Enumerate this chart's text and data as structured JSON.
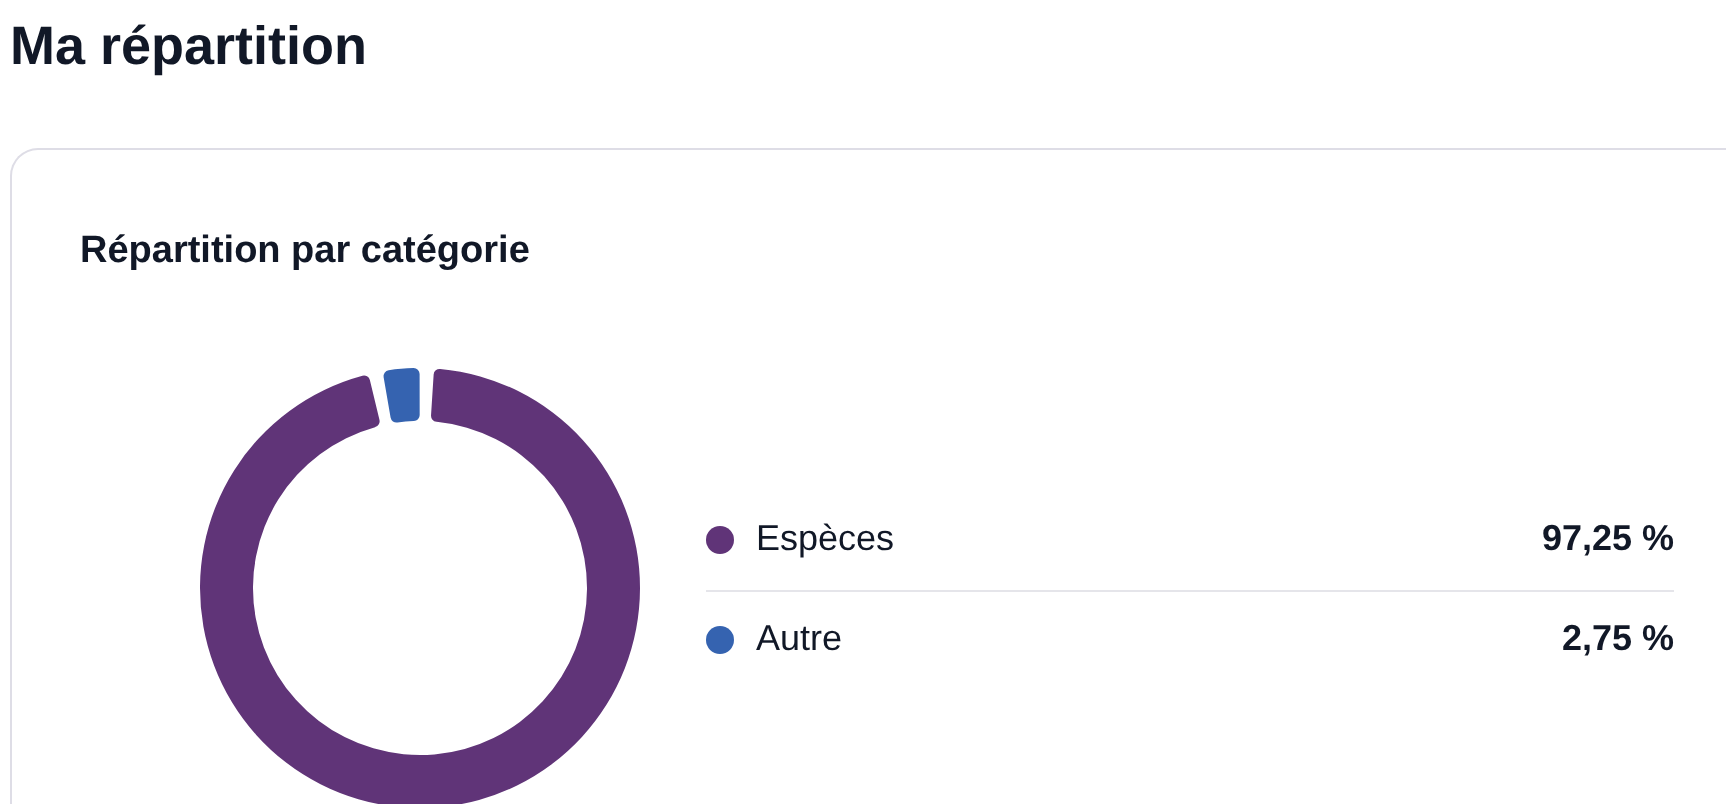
{
  "chart_data": {
    "type": "donut",
    "title": "Ma répartition",
    "subtitle": "Répartition par catégorie",
    "categories": [
      "Espèces",
      "Autre"
    ],
    "values": [
      97.25,
      2.75
    ],
    "colors": [
      "#603478",
      "#3563b0"
    ],
    "value_labels": [
      "97,25 %",
      "2,75 %"
    ],
    "legend": "right"
  }
}
